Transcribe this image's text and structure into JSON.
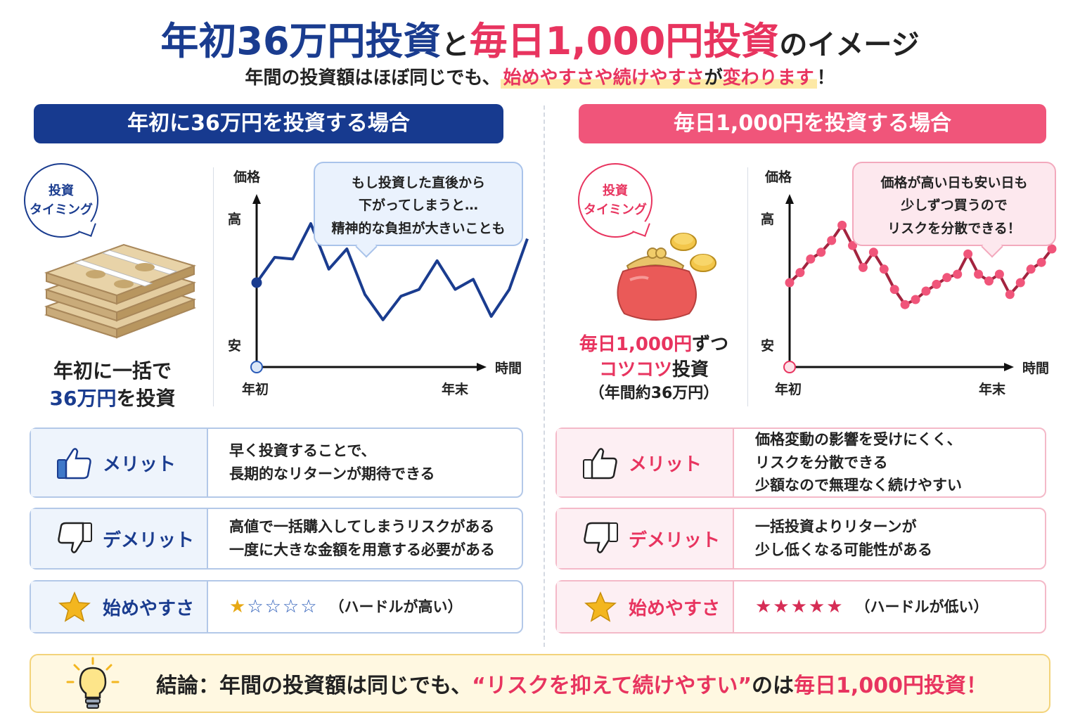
{
  "title": {
    "part1": "年初36万円投資",
    "part2": "と",
    "part3": "毎日1,000円投資",
    "part4": "のイメージ"
  },
  "subtitle": {
    "part1": "年間の投資額はほぼ同じでも、",
    "highlight": "始めやすさや続けやすさ",
    "part2": "が",
    "highlight2": "変わります",
    "part3": "！"
  },
  "left": {
    "header": "年初に36万円を投資する場合",
    "timing_line1": "投資",
    "timing_line2": "タイミング",
    "caption_line1": "年初に一括で",
    "caption_highlight": "36万円",
    "caption_line2": "を投資",
    "bubble_line1": "もし投資した直後から",
    "bubble_line2": "下がってしまうと…",
    "bubble_line3": "精神的な負担が大きいことも",
    "chart": {
      "y_title": "価格",
      "y_high": "高",
      "y_low": "安",
      "x_title": "時間",
      "x_start": "年初",
      "x_end": "年末"
    },
    "rows": {
      "merit_label": "メリット",
      "merit_line1": "早く投資することで、",
      "merit_line2": "長期的なリターンが期待できる",
      "demerit_label": "デメリット",
      "demerit_line1": "高値で一括購入してしまうリスクがある",
      "demerit_line2": "一度に大きな金額を用意する必要がある",
      "ease_label": "始めやすさ",
      "ease_stars_filled": "★",
      "ease_stars_empty": "☆☆☆☆",
      "ease_note": "（ハードルが高い）",
      "ease_rating": 1
    }
  },
  "right": {
    "header": "毎日1,000円を投資する場合",
    "timing_line1": "投資",
    "timing_line2": "タイミング",
    "caption_line1a": "毎日1,000円",
    "caption_line1b": "ずつ",
    "caption_line2a": "コツコツ",
    "caption_line2b": "投資",
    "caption_line3": "（年間約36万円）",
    "bubble_line1": "価格が高い日も安い日も",
    "bubble_line2": "少しずつ買うので",
    "bubble_line3": "リスクを分散できる！",
    "chart": {
      "y_title": "価格",
      "y_high": "高",
      "y_low": "安",
      "x_title": "時間",
      "x_start": "年初",
      "x_end": "年末"
    },
    "rows": {
      "merit_label": "メリット",
      "merit_line1": "価格変動の影響を受けにくく、",
      "merit_line2": "リスクを分散できる",
      "merit_line3": "少額なので無理なく続けやすい",
      "demerit_label": "デメリット",
      "demerit_line1": "一括投資よりリターンが",
      "demerit_line2": "少し低くなる可能性がある",
      "ease_label": "始めやすさ",
      "ease_stars": "★★★★★",
      "ease_note": "（ハードルが低い）",
      "ease_rating": 5
    }
  },
  "conclusion": {
    "part1": "結論：年間の投資額は同じでも、",
    "highlight": "“リスクを抑えて続けやすい”",
    "part2": "のは",
    "highlight2": "毎日1,000円投資！"
  },
  "colors": {
    "blue": "#1a3c8f",
    "pink": "#e8345f",
    "gold": "#f3b61f"
  },
  "icons": {
    "merit": "thumbs-up-icon",
    "demerit": "thumbs-down-icon",
    "ease": "star-icon",
    "conclusion": "lightbulb-icon",
    "left_illustration": "money-stack-icon",
    "right_illustration": "coin-purse-icon"
  },
  "chart_data": [
    {
      "type": "line",
      "y_title": "価格",
      "x_title": "時間",
      "x_labels": [
        "年初",
        "年末"
      ],
      "y_labels": [
        "高",
        "安"
      ],
      "values": [
        50,
        65,
        64,
        85,
        58,
        70,
        43,
        28,
        42,
        46,
        63,
        46,
        52,
        30,
        46,
        76
      ],
      "start_marker": true
    },
    {
      "type": "line",
      "y_title": "価格",
      "x_title": "時間",
      "x_labels": [
        "年初",
        "年末"
      ],
      "y_labels": [
        "高",
        "安"
      ],
      "values": [
        50,
        56,
        64,
        68,
        75,
        84,
        72,
        59,
        68,
        58,
        46,
        37,
        40,
        45,
        49,
        53,
        55,
        67,
        55,
        51,
        55,
        43,
        50,
        58,
        62,
        70
      ],
      "markers_each_point": true
    }
  ]
}
